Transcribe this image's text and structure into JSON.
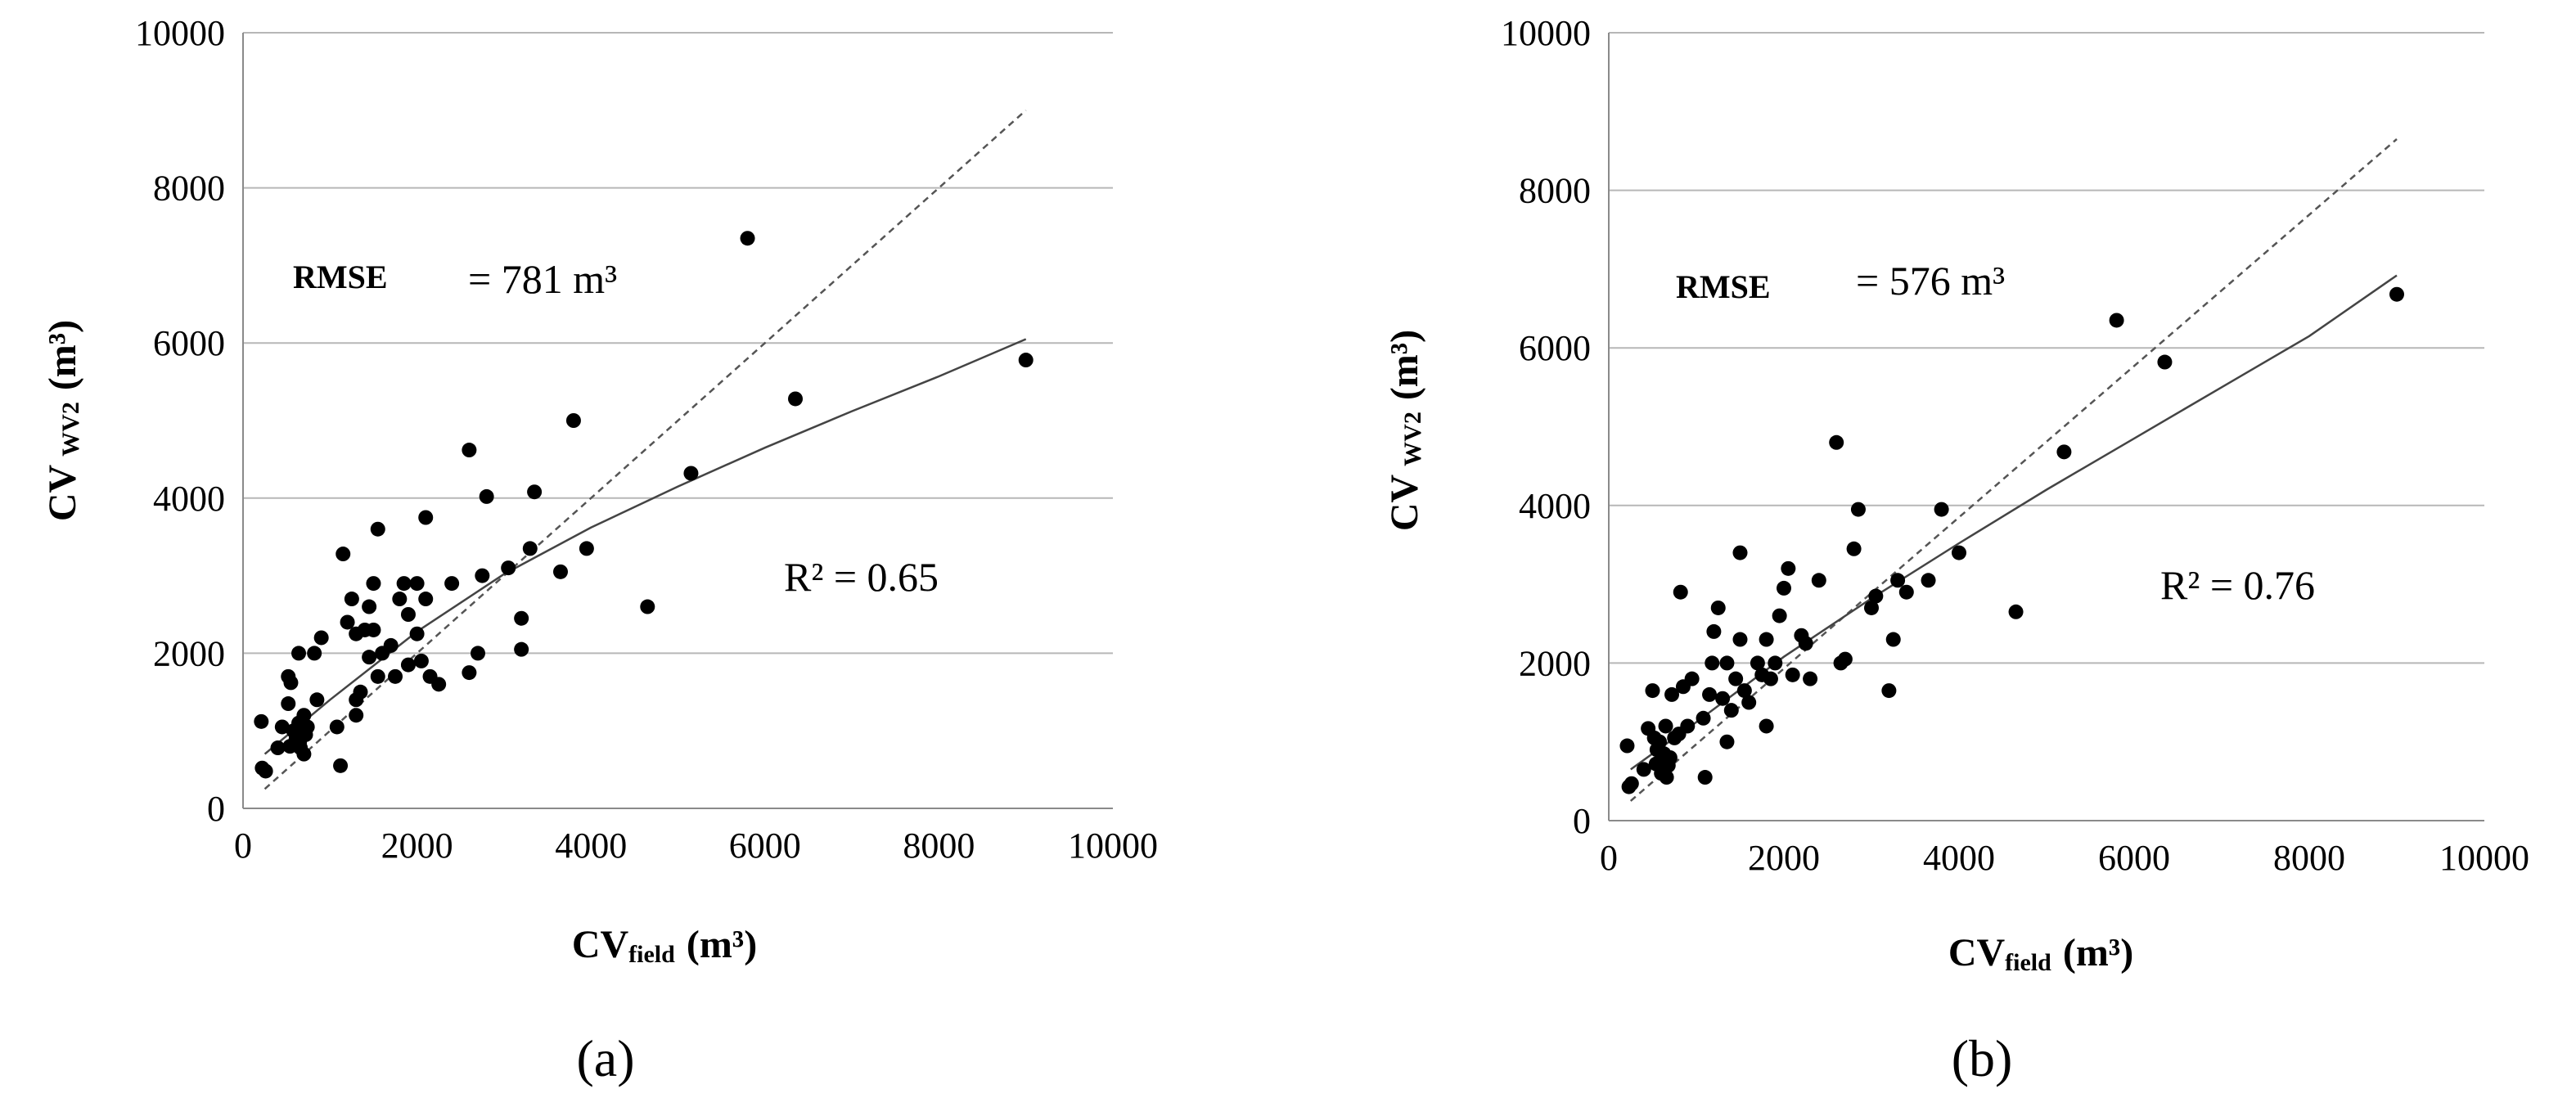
{
  "chart_data": [
    {
      "type": "scatter",
      "panel_label": "(a)",
      "xlabel": {
        "main": "CV",
        "sub": "field",
        "unit": "(m³)"
      },
      "ylabel": {
        "main": "CV",
        "sub": "WV2",
        "unit": "(m³)"
      },
      "xlim": [
        0,
        10000
      ],
      "ylim": [
        0,
        10000
      ],
      "x_ticks": [
        "0",
        "2000",
        "4000",
        "6000",
        "8000",
        "10000"
      ],
      "y_ticks": [
        "0",
        "2000",
        "4000",
        "6000",
        "8000",
        "10000"
      ],
      "grid": "horizontal",
      "rmse_label": "RMSE",
      "rmse_value": "= 781 m³",
      "r2_label": "R² = 0.65",
      "reference_line": {
        "x": [
          250,
          9000
        ],
        "y": [
          250,
          9000
        ]
      },
      "fit_curve": {
        "x": [
          250,
          1000,
          2000,
          3000,
          4000,
          5000,
          6000,
          7000,
          8000,
          9000
        ],
        "y": [
          700,
          1400,
          2280,
          3020,
          3620,
          4150,
          4650,
          5120,
          5570,
          6050
        ]
      },
      "points": [
        [
          210,
          1120
        ],
        [
          220,
          520
        ],
        [
          260,
          480
        ],
        [
          400,
          780
        ],
        [
          450,
          1050
        ],
        [
          520,
          1700
        ],
        [
          520,
          1350
        ],
        [
          540,
          800
        ],
        [
          550,
          1620
        ],
        [
          580,
          1000
        ],
        [
          610,
          900
        ],
        [
          640,
          1100
        ],
        [
          650,
          850
        ],
        [
          660,
          780
        ],
        [
          680,
          1000
        ],
        [
          700,
          1200
        ],
        [
          700,
          700
        ],
        [
          720,
          950
        ],
        [
          740,
          1050
        ],
        [
          640,
          2000
        ],
        [
          820,
          2000
        ],
        [
          850,
          1400
        ],
        [
          900,
          2200
        ],
        [
          1080,
          1050
        ],
        [
          1120,
          550
        ],
        [
          1150,
          3280
        ],
        [
          1200,
          2400
        ],
        [
          1250,
          2700
        ],
        [
          1300,
          1400
        ],
        [
          1300,
          2250
        ],
        [
          1300,
          1200
        ],
        [
          1350,
          1500
        ],
        [
          1400,
          2300
        ],
        [
          1450,
          1950
        ],
        [
          1450,
          2600
        ],
        [
          1500,
          2300
        ],
        [
          1500,
          2900
        ],
        [
          1550,
          3600
        ],
        [
          1550,
          1700
        ],
        [
          1600,
          2000
        ],
        [
          1700,
          2100
        ],
        [
          1750,
          1700
        ],
        [
          1800,
          2700
        ],
        [
          1850,
          2900
        ],
        [
          1900,
          2500
        ],
        [
          1900,
          1850
        ],
        [
          2000,
          2900
        ],
        [
          2000,
          2250
        ],
        [
          2050,
          1900
        ],
        [
          2100,
          3750
        ],
        [
          2100,
          2700
        ],
        [
          2150,
          1700
        ],
        [
          2250,
          1600
        ],
        [
          2400,
          2900
        ],
        [
          2600,
          4620
        ],
        [
          2600,
          1750
        ],
        [
          2700,
          2000
        ],
        [
          2750,
          3000
        ],
        [
          2800,
          4020
        ],
        [
          3050,
          3100
        ],
        [
          3200,
          2450
        ],
        [
          3200,
          2050
        ],
        [
          3300,
          3350
        ],
        [
          3350,
          4080
        ],
        [
          3650,
          3050
        ],
        [
          3800,
          5000
        ],
        [
          3950,
          3350
        ],
        [
          4650,
          2600
        ],
        [
          5150,
          4320
        ],
        [
          5800,
          7350
        ],
        [
          6350,
          5280
        ],
        [
          9000,
          5780
        ]
      ]
    },
    {
      "type": "scatter",
      "panel_label": "(b)",
      "xlabel": {
        "main": "CV",
        "sub": "field",
        "unit": "(m³)"
      },
      "ylabel": {
        "main": "CV",
        "sub": "WV2",
        "unit": "(m³)"
      },
      "xlim": [
        0,
        10000
      ],
      "ylim": [
        0,
        10000
      ],
      "x_ticks": [
        "0",
        "2000",
        "4000",
        "6000",
        "8000",
        "10000"
      ],
      "y_ticks": [
        "0",
        "2000",
        "4000",
        "6000",
        "8000",
        "10000"
      ],
      "grid": "horizontal",
      "rmse_label": "RMSE",
      "rmse_value": "= 576 m³",
      "r2_label": "R² = 0.76",
      "reference_line": {
        "x": [
          250,
          9000
        ],
        "y": [
          250,
          8650
        ]
      },
      "fit_curve": {
        "x": [
          250,
          1000,
          2000,
          3000,
          4000,
          5000,
          6000,
          7000,
          8000,
          9000
        ],
        "y": [
          650,
          1250,
          2080,
          2820,
          3520,
          4200,
          4850,
          5500,
          6150,
          6920
        ]
      },
      "points": [
        [
          210,
          950
        ],
        [
          230,
          430
        ],
        [
          260,
          470
        ],
        [
          400,
          650
        ],
        [
          450,
          1170
        ],
        [
          500,
          1650
        ],
        [
          520,
          1050
        ],
        [
          540,
          720
        ],
        [
          550,
          900
        ],
        [
          580,
          1000
        ],
        [
          600,
          600
        ],
        [
          630,
          850
        ],
        [
          650,
          1200
        ],
        [
          660,
          550
        ],
        [
          680,
          700
        ],
        [
          700,
          800
        ],
        [
          720,
          1600
        ],
        [
          750,
          1050
        ],
        [
          800,
          1100
        ],
        [
          820,
          2900
        ],
        [
          850,
          1700
        ],
        [
          900,
          1200
        ],
        [
          950,
          1800
        ],
        [
          1080,
          1300
        ],
        [
          1100,
          550
        ],
        [
          1150,
          1600
        ],
        [
          1180,
          2000
        ],
        [
          1200,
          2400
        ],
        [
          1250,
          2700
        ],
        [
          1300,
          1550
        ],
        [
          1350,
          2000
        ],
        [
          1350,
          1000
        ],
        [
          1400,
          1400
        ],
        [
          1450,
          1800
        ],
        [
          1500,
          2300
        ],
        [
          1500,
          3400
        ],
        [
          1550,
          1650
        ],
        [
          1600,
          1500
        ],
        [
          1700,
          2000
        ],
        [
          1750,
          1850
        ],
        [
          1800,
          1200
        ],
        [
          1800,
          2300
        ],
        [
          1850,
          1800
        ],
        [
          1900,
          2000
        ],
        [
          1950,
          2600
        ],
        [
          2000,
          2950
        ],
        [
          2050,
          3200
        ],
        [
          2100,
          1850
        ],
        [
          2200,
          2350
        ],
        [
          2250,
          2250
        ],
        [
          2300,
          1800
        ],
        [
          2400,
          3050
        ],
        [
          2600,
          4800
        ],
        [
          2650,
          2000
        ],
        [
          2700,
          2050
        ],
        [
          2800,
          3450
        ],
        [
          2850,
          3950
        ],
        [
          3000,
          2700
        ],
        [
          3050,
          2850
        ],
        [
          3200,
          1650
        ],
        [
          3250,
          2300
        ],
        [
          3300,
          3050
        ],
        [
          3400,
          2900
        ],
        [
          3650,
          3050
        ],
        [
          3800,
          3950
        ],
        [
          4000,
          3400
        ],
        [
          4650,
          2650
        ],
        [
          5200,
          4680
        ],
        [
          5800,
          6350
        ],
        [
          6350,
          5820
        ],
        [
          9000,
          6680
        ]
      ]
    }
  ]
}
